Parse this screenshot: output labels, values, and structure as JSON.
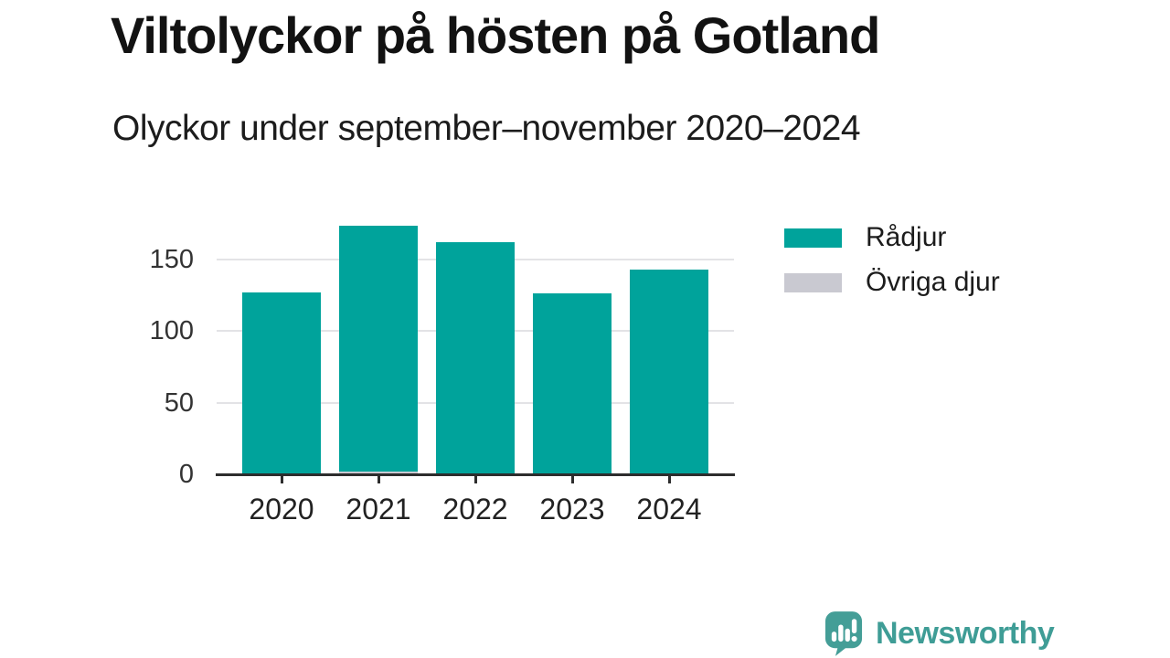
{
  "header": {
    "title": "Viltolyckor på hösten på Gotland",
    "subtitle": "Olyckor under september–november 2020–2024"
  },
  "chart_data": {
    "type": "bar",
    "stacked": true,
    "title": "Viltolyckor på hösten på Gotland",
    "subtitle": "Olyckor under september–november 2020–2024",
    "categories": [
      "2020",
      "2021",
      "2022",
      "2023",
      "2024"
    ],
    "series": [
      {
        "name": "Rådjur",
        "color": "#00a39b",
        "values": [
          127,
          171,
          162,
          126,
          143
        ]
      },
      {
        "name": "Övriga djur",
        "color": "#c9c9d1",
        "values": [
          0,
          2,
          0,
          0,
          0
        ]
      }
    ],
    "stack_order_bottom_to_top": [
      "Övriga djur",
      "Rådjur"
    ],
    "xlabel": "",
    "ylabel": "",
    "yticks": [
      0,
      50,
      100,
      150
    ],
    "ylim": [
      0,
      179
    ],
    "grid": "horizontal",
    "legend_position": "right"
  },
  "legend": {
    "items": [
      {
        "label": "Rådjur",
        "color": "#00a39b"
      },
      {
        "label": "Övriga djur",
        "color": "#c9c9d1"
      }
    ]
  },
  "footer": {
    "brand": "Newsworthy"
  },
  "colors": {
    "bar_teal": "#00a39b",
    "bar_gray": "#c9c9d1",
    "axis": "#2d2d2d",
    "gridline": "#e3e3e6",
    "brand_teal": "#3f9d96",
    "background": "#ffffff"
  }
}
